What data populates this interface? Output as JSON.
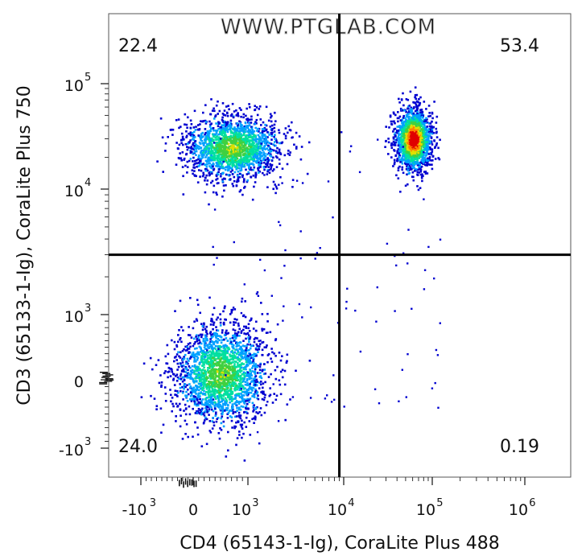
{
  "chart_data": {
    "type": "scatter",
    "style": "flow-cytometry pseudocolor dot plot with quadrant gates",
    "watermark": "WWW.PTGLAB.COM",
    "xlabel": "CD4 (65143-1-Ig), CoraLite Plus 488",
    "ylabel": "CD3 (65133-1-Ig), CoraLite Plus 750",
    "x_axis": {
      "scale": "biexponential",
      "ticks": [
        {
          "base": "-10",
          "exp": "3",
          "value": -1000
        },
        {
          "base": "0",
          "exp": "",
          "value": 0
        },
        {
          "base": "10",
          "exp": "3",
          "value": 1000
        },
        {
          "base": "10",
          "exp": "4",
          "value": 10000
        },
        {
          "base": "10",
          "exp": "5",
          "value": 100000
        },
        {
          "base": "10",
          "exp": "6",
          "value": 1000000
        }
      ]
    },
    "y_axis": {
      "scale": "biexponential",
      "ticks": [
        {
          "base": "-10",
          "exp": "3",
          "value": -1000
        },
        {
          "base": "0",
          "exp": "",
          "value": 0
        },
        {
          "base": "10",
          "exp": "3",
          "value": 1000
        },
        {
          "base": "10",
          "exp": "4",
          "value": 10000
        },
        {
          "base": "10",
          "exp": "5",
          "value": 100000
        }
      ]
    },
    "quadrant_gate": {
      "x": 9000,
      "y": 3000
    },
    "quadrants": [
      {
        "position": "top-left",
        "percent": "22.4"
      },
      {
        "position": "top-right",
        "percent": "53.4"
      },
      {
        "position": "bottom-left",
        "percent": "24.0"
      },
      {
        "position": "bottom-right",
        "percent": "0.19"
      }
    ],
    "populations": [
      {
        "quadrant": "top-left",
        "center_x": 700,
        "center_y": 25000,
        "density": "medium"
      },
      {
        "quadrant": "top-right",
        "center_x": 60000,
        "center_y": 30000,
        "density": "high"
      },
      {
        "quadrant": "bottom-left",
        "center_x": 500,
        "center_y": 100,
        "density": "medium"
      }
    ],
    "color_scale": [
      "#0000d0",
      "#00a0ff",
      "#00e0a0",
      "#40d040",
      "#e0e000",
      "#ff8000",
      "#e00000"
    ]
  }
}
